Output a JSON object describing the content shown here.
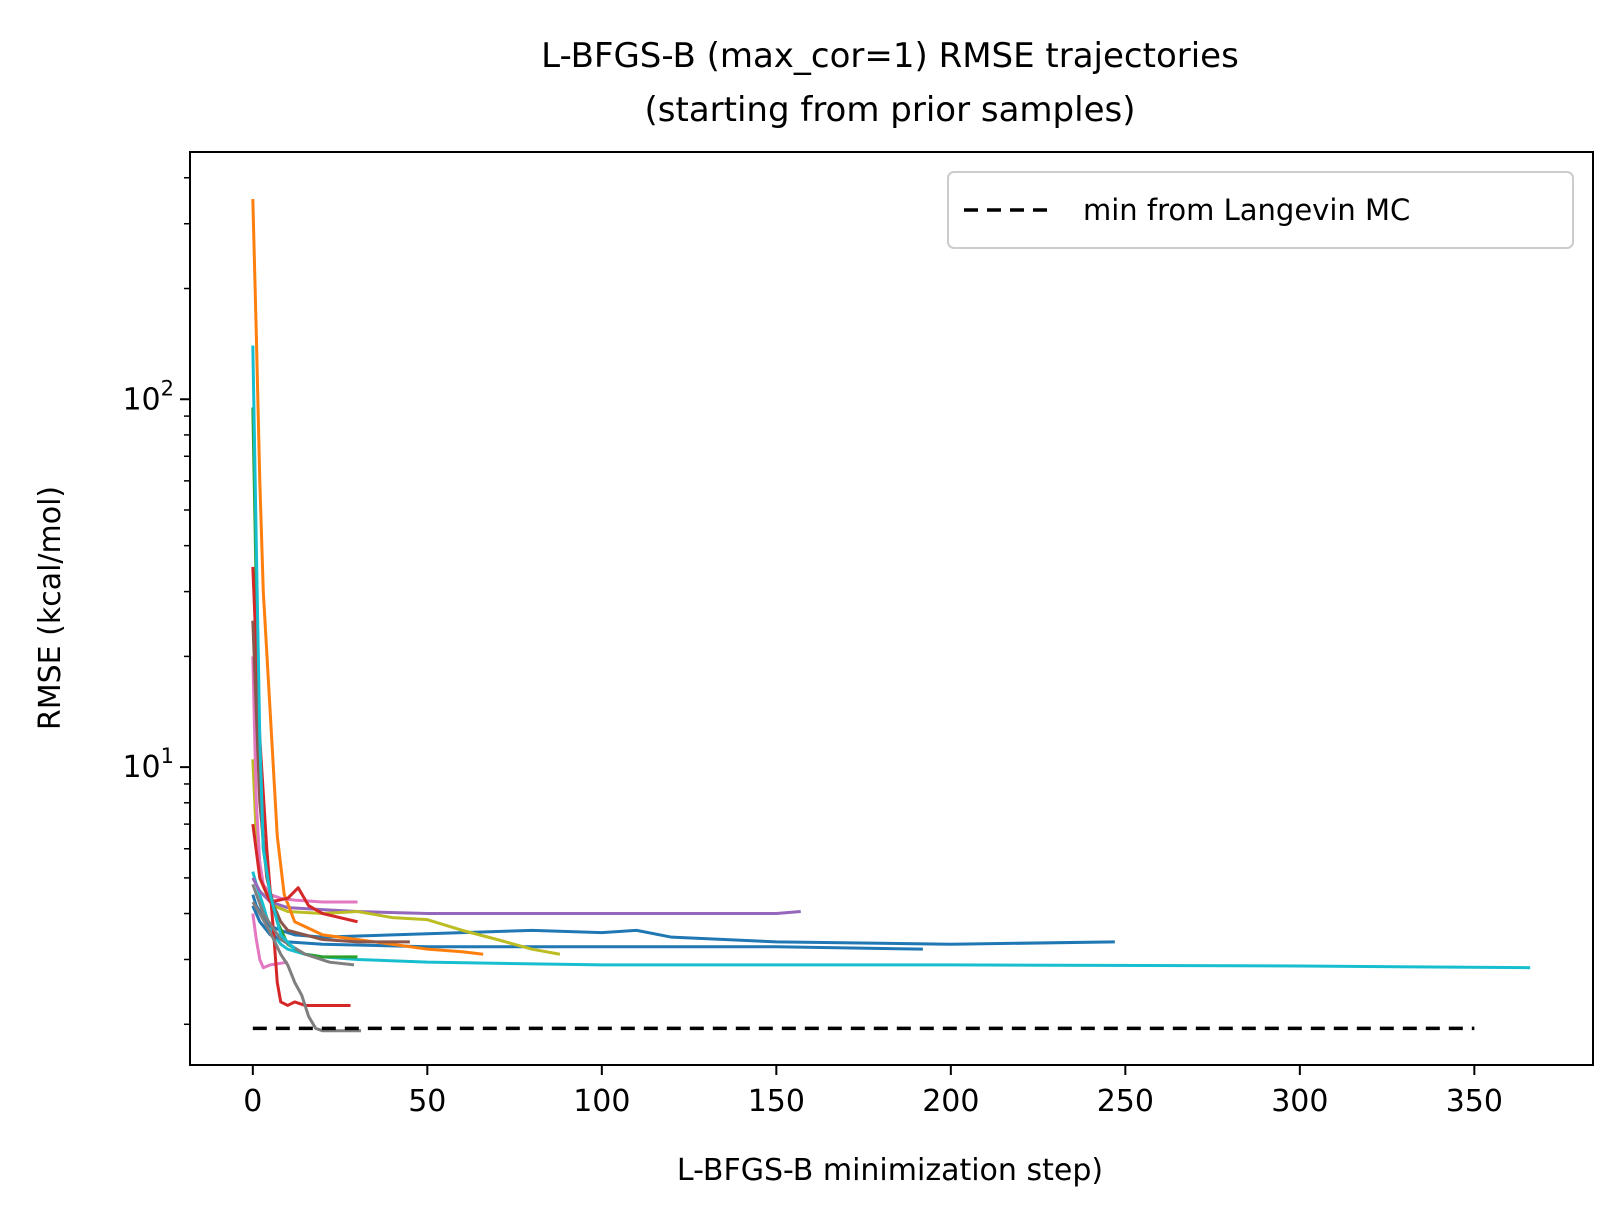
{
  "chart_data": {
    "type": "line",
    "title": "L-BFGS-B (max_cor=1) RMSE trajectories",
    "subtitle": "(starting from prior samples)",
    "xlabel": "L-BFGS-B minimization step)",
    "ylabel": "RMSE (kcal/mol)",
    "xlim": [
      -18,
      384
    ],
    "ylim": [
      1.55,
      470
    ],
    "yscale": "log",
    "grid": false,
    "x_ticks": [
      0,
      50,
      100,
      150,
      200,
      250,
      300,
      350
    ],
    "x_tick_labels": [
      "0",
      "50",
      "100",
      "150",
      "200",
      "250",
      "300",
      "350"
    ],
    "y_ticks": [
      10,
      100
    ],
    "y_tick_labels": [
      {
        "base": "10",
        "exp": "1"
      },
      {
        "base": "10",
        "exp": "2"
      }
    ],
    "legend": {
      "placement": "top-right",
      "entries": [
        {
          "label": "min from Langevin MC",
          "color": "#000000",
          "style": "dashed"
        }
      ]
    },
    "reference_line": {
      "label": "min from Langevin MC",
      "x": [
        0,
        350
      ],
      "y": 1.95,
      "color": "#000000",
      "style": "dashed"
    },
    "series": [
      {
        "color": "#17becf",
        "x": [
          0,
          1,
          2,
          3,
          4,
          5,
          6,
          8,
          10,
          15,
          20,
          30,
          50,
          100,
          200,
          300,
          366
        ],
        "y": [
          5.2,
          4.8,
          4.5,
          4.2,
          3.9,
          3.7,
          3.5,
          3.3,
          3.2,
          3.1,
          3.05,
          3.0,
          2.95,
          2.9,
          2.9,
          2.88,
          2.85
        ]
      },
      {
        "color": "#1f77b4",
        "x": [
          0,
          1,
          3,
          5,
          8,
          12,
          20,
          40,
          80,
          100,
          110,
          120,
          150,
          200,
          247
        ],
        "y": [
          4.5,
          4.2,
          3.9,
          3.7,
          3.6,
          3.5,
          3.45,
          3.5,
          3.6,
          3.55,
          3.6,
          3.45,
          3.35,
          3.3,
          3.35
        ]
      },
      {
        "color": "#1f77b4",
        "x": [
          0,
          2,
          5,
          10,
          20,
          50,
          100,
          150,
          192
        ],
        "y": [
          4.2,
          3.8,
          3.5,
          3.35,
          3.3,
          3.25,
          3.25,
          3.25,
          3.2
        ]
      },
      {
        "color": "#9467bd",
        "x": [
          0,
          2,
          5,
          10,
          20,
          30,
          50,
          100,
          150,
          157
        ],
        "y": [
          5.0,
          4.6,
          4.3,
          4.15,
          4.1,
          4.05,
          4.0,
          4.0,
          4.0,
          4.05
        ]
      },
      {
        "color": "#bcbd22",
        "x": [
          0,
          1,
          2,
          4,
          6,
          10,
          20,
          30,
          40,
          50,
          60,
          70,
          80,
          88
        ],
        "y": [
          10.5,
          6.5,
          5.0,
          4.5,
          4.2,
          4.05,
          4.0,
          4.05,
          3.9,
          3.85,
          3.6,
          3.4,
          3.2,
          3.1
        ]
      },
      {
        "color": "#ff7f0e",
        "x": [
          0,
          1,
          2,
          3,
          5,
          7,
          9,
          12,
          20,
          40,
          50,
          60,
          66
        ],
        "y": [
          350,
          150,
          60,
          30,
          14,
          6.5,
          4.5,
          3.8,
          3.5,
          3.3,
          3.2,
          3.15,
          3.1
        ]
      },
      {
        "color": "#e377c2",
        "x": [
          0,
          1,
          2,
          3,
          5,
          8,
          12,
          20,
          30
        ],
        "y": [
          20,
          8,
          5.5,
          4.8,
          4.5,
          4.4,
          4.35,
          4.3,
          4.3
        ]
      },
      {
        "color": "#e377c2",
        "x": [
          0,
          1,
          2,
          3,
          5,
          10
        ],
        "y": [
          4.0,
          3.4,
          3.0,
          2.85,
          2.9,
          2.95
        ]
      },
      {
        "color": "#2ca02c",
        "x": [
          0,
          1,
          2,
          3,
          5,
          7,
          10,
          15,
          20,
          30
        ],
        "y": [
          95,
          30,
          10,
          6,
          4.5,
          3.8,
          3.3,
          3.1,
          3.05,
          3.05
        ]
      },
      {
        "color": "#d62728",
        "x": [
          0,
          2,
          4,
          6,
          7,
          8,
          10,
          12,
          15,
          20,
          28
        ],
        "y": [
          35,
          12,
          6,
          3.5,
          2.6,
          2.3,
          2.25,
          2.3,
          2.25,
          2.25,
          2.25
        ]
      },
      {
        "color": "#d62728",
        "x": [
          0,
          2,
          5,
          10,
          13,
          16,
          20,
          30
        ],
        "y": [
          7,
          5,
          4.3,
          4.4,
          4.7,
          4.2,
          4.0,
          3.8
        ]
      },
      {
        "color": "#8c564b",
        "x": [
          0,
          2,
          4,
          6,
          8,
          10,
          20,
          30,
          45
        ],
        "y": [
          25,
          8,
          5,
          4.2,
          3.8,
          3.6,
          3.4,
          3.35,
          3.35
        ]
      },
      {
        "color": "#7f7f7f",
        "x": [
          0,
          2,
          4,
          6,
          8,
          10,
          12,
          14,
          16,
          18,
          20,
          25,
          31
        ],
        "y": [
          4.3,
          4.0,
          3.7,
          3.4,
          3.1,
          2.9,
          2.6,
          2.4,
          2.1,
          1.95,
          1.92,
          1.92,
          1.92
        ]
      },
      {
        "color": "#7f7f7f",
        "x": [
          0,
          3,
          8,
          15,
          22,
          29
        ],
        "y": [
          4.8,
          4.0,
          3.4,
          3.1,
          2.95,
          2.9
        ]
      },
      {
        "color": "#17becf",
        "x": [
          0,
          1,
          2,
          3,
          5,
          8,
          12
        ],
        "y": [
          140,
          40,
          12,
          6,
          4.5,
          3.5,
          3.2
        ]
      }
    ]
  }
}
